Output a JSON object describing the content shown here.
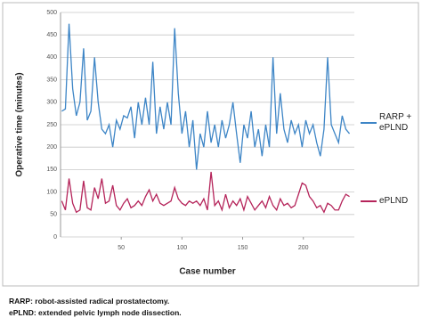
{
  "chart_data": {
    "type": "line",
    "x_label": "Case number",
    "y_label": "Operative time (minutes)",
    "x": [
      1,
      4,
      7,
      10,
      13,
      16,
      19,
      22,
      25,
      28,
      31,
      34,
      37,
      40,
      43,
      46,
      49,
      52,
      55,
      58,
      61,
      64,
      67,
      70,
      73,
      76,
      79,
      82,
      85,
      88,
      91,
      94,
      97,
      100,
      103,
      106,
      109,
      112,
      115,
      118,
      121,
      124,
      127,
      130,
      133,
      136,
      139,
      142,
      145,
      148,
      151,
      154,
      157,
      160,
      163,
      166,
      169,
      172,
      175,
      178,
      181,
      184,
      187,
      190,
      193,
      196,
      199,
      202,
      205,
      208,
      211,
      214,
      217,
      220,
      223,
      226,
      229,
      232,
      235,
      238
    ],
    "series": [
      {
        "name": "RARP + ePLND",
        "color": "#3d85c6",
        "values": [
          280,
          285,
          475,
          330,
          270,
          300,
          420,
          260,
          280,
          400,
          300,
          240,
          230,
          250,
          200,
          260,
          240,
          270,
          265,
          290,
          220,
          300,
          250,
          310,
          250,
          390,
          230,
          290,
          240,
          300,
          250,
          465,
          320,
          230,
          280,
          200,
          260,
          150,
          230,
          200,
          280,
          210,
          250,
          200,
          260,
          220,
          250,
          300,
          230,
          165,
          250,
          220,
          280,
          200,
          240,
          180,
          250,
          200,
          400,
          230,
          320,
          240,
          210,
          260,
          230,
          250,
          200,
          260,
          230,
          250,
          210,
          180,
          240,
          400,
          250,
          230,
          210,
          270,
          240,
          230
        ]
      },
      {
        "name": "ePLND",
        "color": "#b5245a",
        "values": [
          80,
          60,
          130,
          75,
          55,
          60,
          125,
          65,
          60,
          110,
          85,
          130,
          75,
          80,
          115,
          70,
          60,
          75,
          85,
          65,
          70,
          80,
          70,
          90,
          105,
          80,
          95,
          75,
          70,
          75,
          80,
          110,
          85,
          75,
          70,
          80,
          75,
          80,
          70,
          85,
          60,
          145,
          70,
          80,
          60,
          95,
          65,
          80,
          70,
          85,
          60,
          90,
          75,
          60,
          70,
          80,
          65,
          90,
          70,
          60,
          85,
          70,
          75,
          65,
          70,
          95,
          120,
          115,
          90,
          80,
          65,
          70,
          55,
          75,
          70,
          60,
          60,
          80,
          95,
          90
        ]
      }
    ],
    "xlim": [
      0,
      242
    ],
    "xticks": [
      50,
      100,
      150,
      200
    ],
    "ylim": [
      0,
      500
    ],
    "yticks": [
      0,
      50,
      100,
      150,
      200,
      250,
      300,
      350,
      400,
      450,
      500
    ],
    "grid": true
  },
  "notes": [
    "RARP: robot-assisted radical prostatectomy.",
    "ePLND: extended pelvic lymph node dissection."
  ]
}
